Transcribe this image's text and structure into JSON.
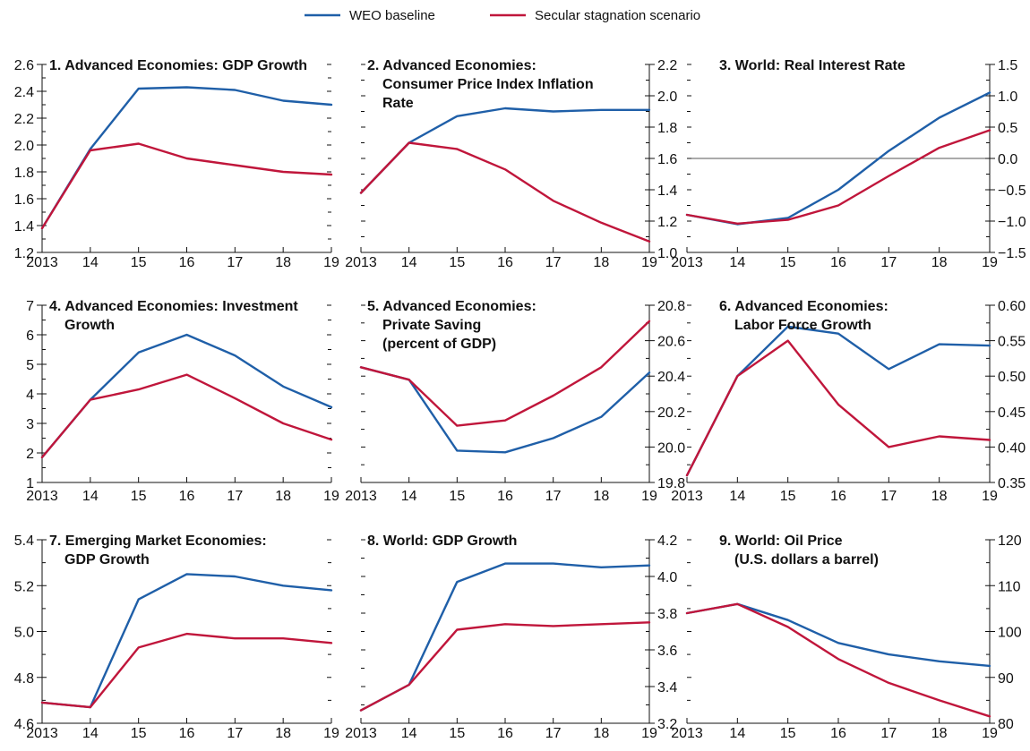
{
  "legend": [
    {
      "label": "WEO baseline",
      "color": "#1f5fa8"
    },
    {
      "label": "Secular stagnation scenario",
      "color": "#c0163b"
    }
  ],
  "chart_data": [
    {
      "type": "line",
      "title": "1. Advanced Economies: GDP Growth",
      "title_lines": [
        "1. Advanced Economies: GDP Growth"
      ],
      "x": [
        "2013",
        "14",
        "15",
        "16",
        "17",
        "18",
        "19"
      ],
      "y_axis": "left",
      "ylim": [
        1.2,
        2.6
      ],
      "yticks": [
        1.2,
        1.4,
        1.6,
        1.8,
        2.0,
        2.2,
        2.4,
        2.6
      ],
      "ytick_decimals": 1,
      "series": [
        {
          "name": "WEO baseline",
          "color": "#1f5fa8",
          "values": [
            1.38,
            1.97,
            2.42,
            2.43,
            2.41,
            2.33,
            2.3
          ]
        },
        {
          "name": "Secular stagnation scenario",
          "color": "#c0163b",
          "values": [
            1.38,
            1.96,
            2.01,
            1.9,
            1.85,
            1.8,
            1.78
          ]
        }
      ]
    },
    {
      "type": "line",
      "title": "2. Advanced Economies: Consumer Price Index Inflation Rate",
      "title_lines": [
        "2. Advanced Economies:",
        "Consumer Price Index Inflation",
        "Rate"
      ],
      "x": [
        "2013",
        "14",
        "15",
        "16",
        "17",
        "18",
        "19"
      ],
      "y_axis": "right",
      "ylim": [
        1.0,
        2.2
      ],
      "yticks": [
        1.0,
        1.2,
        1.4,
        1.6,
        1.8,
        2.0,
        2.2
      ],
      "ytick_decimals": 1,
      "series": [
        {
          "name": "WEO baseline",
          "color": "#1f5fa8",
          "values": [
            1.38,
            1.7,
            1.87,
            1.92,
            1.9,
            1.91,
            1.91
          ]
        },
        {
          "name": "Secular stagnation scenario",
          "color": "#c0163b",
          "values": [
            1.38,
            1.7,
            1.66,
            1.53,
            1.33,
            1.19,
            1.07
          ]
        }
      ]
    },
    {
      "type": "line",
      "title": "3. World: Real Interest Rate",
      "title_lines": [
        "3. World: Real Interest Rate"
      ],
      "x": [
        "2013",
        "14",
        "15",
        "16",
        "17",
        "18",
        "19"
      ],
      "y_axis": "right",
      "ylim": [
        -1.5,
        1.5
      ],
      "yticks": [
        -1.5,
        -1.0,
        -0.5,
        0.0,
        0.5,
        1.0,
        1.5
      ],
      "ytick_decimals": 1,
      "zero_line": true,
      "series": [
        {
          "name": "WEO baseline",
          "color": "#1f5fa8",
          "values": [
            -0.9,
            -1.05,
            -0.95,
            -0.5,
            0.12,
            0.65,
            1.05
          ]
        },
        {
          "name": "Secular stagnation scenario",
          "color": "#c0163b",
          "values": [
            -0.9,
            -1.04,
            -0.98,
            -0.75,
            -0.28,
            0.17,
            0.45
          ]
        }
      ]
    },
    {
      "type": "line",
      "title": "4. Advanced Economies: Investment Growth",
      "title_lines": [
        "4. Advanced Economies: Investment",
        "Growth"
      ],
      "x": [
        "2013",
        "14",
        "15",
        "16",
        "17",
        "18",
        "19"
      ],
      "y_axis": "left",
      "ylim": [
        1,
        7
      ],
      "yticks": [
        1,
        2,
        3,
        4,
        5,
        6,
        7
      ],
      "ytick_decimals": 0,
      "series": [
        {
          "name": "WEO baseline",
          "color": "#1f5fa8",
          "values": [
            1.85,
            3.8,
            5.4,
            6.0,
            5.3,
            4.25,
            3.55
          ]
        },
        {
          "name": "Secular stagnation scenario",
          "color": "#c0163b",
          "values": [
            1.85,
            3.8,
            4.15,
            4.65,
            3.85,
            3.0,
            2.45
          ]
        }
      ]
    },
    {
      "type": "line",
      "title": "5. Advanced Economies: Private Saving (percent of GDP)",
      "title_lines": [
        "5. Advanced Economies:",
        "Private Saving",
        "(percent of GDP)"
      ],
      "x": [
        "2013",
        "14",
        "15",
        "16",
        "17",
        "18",
        "19"
      ],
      "y_axis": "right",
      "ylim": [
        19.8,
        20.8
      ],
      "yticks": [
        19.8,
        20.0,
        20.2,
        20.4,
        20.6,
        20.8
      ],
      "ytick_decimals": 1,
      "series": [
        {
          "name": "WEO baseline",
          "color": "#1f5fa8",
          "values": [
            20.45,
            20.38,
            19.98,
            19.97,
            20.05,
            20.17,
            20.42
          ]
        },
        {
          "name": "Secular stagnation scenario",
          "color": "#c0163b",
          "values": [
            20.45,
            20.38,
            20.12,
            20.15,
            20.29,
            20.45,
            20.71
          ]
        }
      ]
    },
    {
      "type": "line",
      "title": "6. Advanced Economies: Labor Force Growth",
      "title_lines": [
        "6. Advanced Economies:",
        "Labor Force Growth"
      ],
      "x": [
        "2013",
        "14",
        "15",
        "16",
        "17",
        "18",
        "19"
      ],
      "y_axis": "right",
      "ylim": [
        0.35,
        0.6
      ],
      "yticks": [
        0.35,
        0.4,
        0.45,
        0.5,
        0.55,
        0.6
      ],
      "ytick_decimals": 2,
      "series": [
        {
          "name": "WEO baseline",
          "color": "#1f5fa8",
          "values": [
            0.36,
            0.5,
            0.57,
            0.56,
            0.51,
            0.545,
            0.543
          ]
        },
        {
          "name": "Secular stagnation scenario",
          "color": "#c0163b",
          "values": [
            0.36,
            0.5,
            0.55,
            0.46,
            0.4,
            0.415,
            0.41
          ]
        }
      ]
    },
    {
      "type": "line",
      "title": "7. Emerging Market Economies: GDP Growth",
      "title_lines": [
        "7. Emerging Market Economies:",
        "GDP Growth"
      ],
      "x": [
        "2013",
        "14",
        "15",
        "16",
        "17",
        "18",
        "19"
      ],
      "y_axis": "left",
      "ylim": [
        4.6,
        5.4
      ],
      "yticks": [
        4.6,
        4.8,
        5.0,
        5.2,
        5.4
      ],
      "ytick_decimals": 1,
      "series": [
        {
          "name": "WEO baseline",
          "color": "#1f5fa8",
          "values": [
            4.69,
            4.67,
            5.14,
            5.25,
            5.24,
            5.2,
            5.18
          ]
        },
        {
          "name": "Secular stagnation scenario",
          "color": "#c0163b",
          "values": [
            4.69,
            4.67,
            4.93,
            4.99,
            4.97,
            4.97,
            4.95
          ]
        }
      ]
    },
    {
      "type": "line",
      "title": "8. World: GDP Growth",
      "title_lines": [
        "8. World: GDP Growth"
      ],
      "x": [
        "2013",
        "14",
        "15",
        "16",
        "17",
        "18",
        "19"
      ],
      "y_axis": "right",
      "ylim": [
        3.2,
        4.2
      ],
      "yticks": [
        3.2,
        3.4,
        3.6,
        3.8,
        4.0,
        4.2
      ],
      "ytick_decimals": 1,
      "series": [
        {
          "name": "WEO baseline",
          "color": "#1f5fa8",
          "values": [
            3.27,
            3.41,
            3.97,
            4.07,
            4.07,
            4.05,
            4.06
          ]
        },
        {
          "name": "Secular stagnation scenario",
          "color": "#c0163b",
          "values": [
            3.27,
            3.41,
            3.71,
            3.74,
            3.73,
            3.74,
            3.75
          ]
        }
      ]
    },
    {
      "type": "line",
      "title": "9. World: Oil Price (U.S. dollars a barrel)",
      "title_lines": [
        "9. World: Oil Price",
        "(U.S. dollars a barrel)"
      ],
      "x": [
        "2013",
        "14",
        "15",
        "16",
        "17",
        "18",
        "19"
      ],
      "y_axis": "right",
      "ylim": [
        80,
        120
      ],
      "yticks": [
        80,
        90,
        100,
        110,
        120
      ],
      "ytick_decimals": 0,
      "series": [
        {
          "name": "WEO baseline",
          "color": "#1f5fa8",
          "values": [
            104.0,
            106.0,
            102.5,
            97.5,
            95.0,
            93.5,
            92.5
          ]
        },
        {
          "name": "Secular stagnation scenario",
          "color": "#c0163b",
          "values": [
            104.0,
            106.0,
            101.0,
            94.0,
            88.8,
            85.0,
            81.5
          ]
        }
      ]
    }
  ]
}
